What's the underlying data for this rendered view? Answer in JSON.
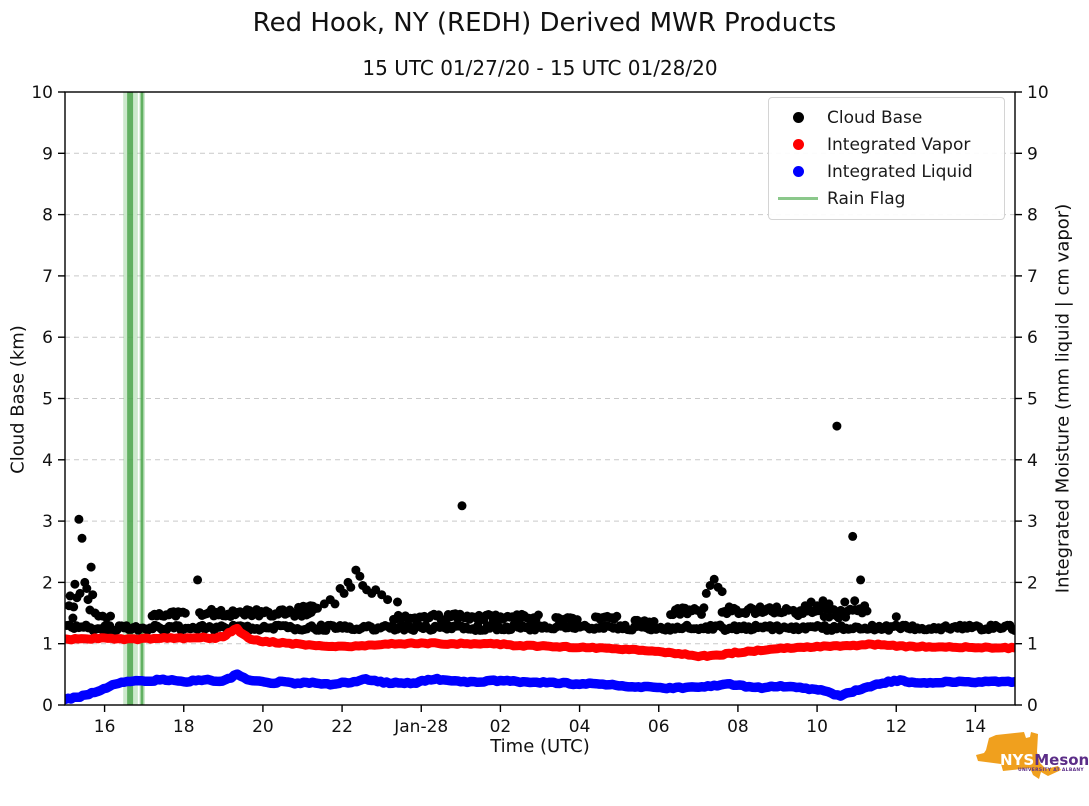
{
  "chart_data": {
    "type": "scatter",
    "title": "Red Hook, NY (REDH) Derived MWR Products",
    "subtitle": "15 UTC 01/27/20 - 15 UTC 01/28/20",
    "x_axis": {
      "label": "Time (UTC)",
      "range_hours": [
        0,
        24
      ],
      "start_label": "15 UTC 01/27/20",
      "ticks": [
        {
          "t": 1,
          "label": "16"
        },
        {
          "t": 3,
          "label": "18"
        },
        {
          "t": 5,
          "label": "20"
        },
        {
          "t": 7,
          "label": "22"
        },
        {
          "t": 9,
          "label": "Jan-28"
        },
        {
          "t": 11,
          "label": "02"
        },
        {
          "t": 13,
          "label": "04"
        },
        {
          "t": 15,
          "label": "06"
        },
        {
          "t": 17,
          "label": "08"
        },
        {
          "t": 19,
          "label": "10"
        },
        {
          "t": 21,
          "label": "12"
        },
        {
          "t": 23,
          "label": "14"
        }
      ]
    },
    "y_left": {
      "label": "Cloud Base (km)",
      "min": 0,
      "max": 10,
      "tick_step": 1
    },
    "y_right": {
      "label": "Integrated Moisture (mm liquid | cm vapor)",
      "min": 0,
      "max": 10,
      "tick_step": 1
    },
    "grid": {
      "horizontal_dashed": true,
      "color": "#c9c9c9"
    },
    "legend": {
      "position": "upper right",
      "items": [
        {
          "label": "Cloud Base",
          "marker": "dot",
          "color": "#000000"
        },
        {
          "label": "Integrated Vapor",
          "marker": "dot",
          "color": "#ff0000"
        },
        {
          "label": "Integrated Liquid",
          "marker": "dot",
          "color": "#0000ff"
        },
        {
          "label": "Rain Flag",
          "marker": "line",
          "color": "#8bc88b"
        }
      ]
    },
    "series": {
      "cloud_base": {
        "name": "Cloud Base",
        "color": "#000000",
        "units": "km",
        "marker_diameter_px": 9,
        "outlier_points": [
          [
            0.1,
            1.62
          ],
          [
            0.13,
            1.78
          ],
          [
            0.2,
            1.42
          ],
          [
            0.22,
            1.6
          ],
          [
            0.25,
            1.97
          ],
          [
            0.3,
            1.75
          ],
          [
            0.35,
            3.03
          ],
          [
            0.38,
            1.82
          ],
          [
            0.43,
            2.72
          ],
          [
            0.5,
            2.0
          ],
          [
            0.55,
            1.9
          ],
          [
            0.58,
            1.72
          ],
          [
            0.63,
            1.55
          ],
          [
            0.66,
            2.25
          ],
          [
            0.7,
            1.8
          ],
          [
            0.76,
            1.5
          ],
          [
            0.85,
            1.45
          ],
          [
            0.95,
            1.45
          ],
          [
            1.05,
            1.42
          ],
          [
            1.15,
            1.45
          ],
          [
            3.35,
            2.04
          ],
          [
            6.55,
            1.65
          ],
          [
            6.7,
            1.72
          ],
          [
            6.82,
            1.65
          ],
          [
            6.95,
            1.9
          ],
          [
            7.05,
            1.82
          ],
          [
            7.15,
            2.0
          ],
          [
            7.22,
            1.92
          ],
          [
            7.35,
            2.2
          ],
          [
            7.45,
            2.1
          ],
          [
            7.52,
            1.95
          ],
          [
            7.62,
            1.88
          ],
          [
            7.75,
            1.82
          ],
          [
            7.85,
            1.88
          ],
          [
            8.0,
            1.8
          ],
          [
            8.15,
            1.72
          ],
          [
            8.4,
            1.68
          ],
          [
            10.03,
            3.25
          ],
          [
            16.2,
            1.82
          ],
          [
            16.3,
            1.95
          ],
          [
            16.4,
            2.05
          ],
          [
            16.5,
            1.92
          ],
          [
            16.6,
            1.85
          ],
          [
            18.7,
            1.62
          ],
          [
            18.85,
            1.68
          ],
          [
            19.0,
            1.62
          ],
          [
            19.15,
            1.7
          ],
          [
            19.3,
            1.65
          ],
          [
            19.5,
            4.55
          ],
          [
            19.7,
            1.68
          ],
          [
            19.9,
            2.75
          ],
          [
            19.95,
            1.7
          ],
          [
            20.1,
            2.04
          ],
          [
            20.2,
            1.62
          ],
          [
            21.0,
            1.44
          ]
        ],
        "band_segments": [
          [
            0.05,
            24.0,
            1.26,
            0.045
          ],
          [
            2.2,
            3.1,
            1.49,
            0.05
          ],
          [
            3.4,
            6.3,
            1.5,
            0.06
          ],
          [
            5.9,
            6.4,
            1.58,
            0.04
          ],
          [
            8.3,
            10.0,
            1.44,
            0.05
          ],
          [
            10.1,
            12.0,
            1.43,
            0.05
          ],
          [
            12.4,
            13.0,
            1.42,
            0.04
          ],
          [
            13.4,
            14.0,
            1.42,
            0.04
          ],
          [
            14.4,
            14.9,
            1.36,
            0.04
          ],
          [
            15.3,
            16.2,
            1.53,
            0.06
          ],
          [
            16.6,
            18.3,
            1.55,
            0.06
          ],
          [
            18.4,
            20.3,
            1.5,
            0.08
          ]
        ]
      },
      "integrated_vapor": {
        "name": "Integrated Vapor",
        "color": "#ff0000",
        "units": "cm",
        "points": [
          [
            0,
            1.07
          ],
          [
            0.5,
            1.08
          ],
          [
            1,
            1.09
          ],
          [
            1.5,
            1.07
          ],
          [
            2,
            1.08
          ],
          [
            2.5,
            1.09
          ],
          [
            3,
            1.09
          ],
          [
            3.5,
            1.1
          ],
          [
            3.8,
            1.09
          ],
          [
            4.0,
            1.12
          ],
          [
            4.2,
            1.2
          ],
          [
            4.35,
            1.24
          ],
          [
            4.5,
            1.15
          ],
          [
            4.7,
            1.08
          ],
          [
            5,
            1.04
          ],
          [
            5.5,
            1.01
          ],
          [
            6,
            0.99
          ],
          [
            6.5,
            0.97
          ],
          [
            7,
            0.95
          ],
          [
            7.5,
            0.96
          ],
          [
            8,
            0.99
          ],
          [
            8.5,
            1.0
          ],
          [
            9,
            1.01
          ],
          [
            9.5,
            1.0
          ],
          [
            10,
            1.0
          ],
          [
            10.5,
            1.0
          ],
          [
            11,
            0.99
          ],
          [
            11.5,
            0.97
          ],
          [
            12,
            0.96
          ],
          [
            12.5,
            0.95
          ],
          [
            13,
            0.94
          ],
          [
            13.5,
            0.93
          ],
          [
            14,
            0.91
          ],
          [
            14.5,
            0.89
          ],
          [
            15,
            0.87
          ],
          [
            15.5,
            0.84
          ],
          [
            16,
            0.8
          ],
          [
            16.3,
            0.8
          ],
          [
            16.7,
            0.83
          ],
          [
            17,
            0.86
          ],
          [
            17.5,
            0.89
          ],
          [
            18,
            0.92
          ],
          [
            18.5,
            0.94
          ],
          [
            19,
            0.95
          ],
          [
            19.5,
            0.96
          ],
          [
            20,
            0.97
          ],
          [
            20.3,
            0.99
          ],
          [
            20.7,
            0.98
          ],
          [
            21,
            0.96
          ],
          [
            21.5,
            0.95
          ],
          [
            22,
            0.95
          ],
          [
            22.5,
            0.94
          ],
          [
            23,
            0.94
          ],
          [
            23.5,
            0.93
          ],
          [
            24,
            0.93
          ]
        ]
      },
      "integrated_liquid": {
        "name": "Integrated Liquid",
        "color": "#0000ff",
        "units": "mm",
        "points": [
          [
            0,
            0.1
          ],
          [
            0.3,
            0.12
          ],
          [
            0.6,
            0.18
          ],
          [
            0.9,
            0.25
          ],
          [
            1.2,
            0.32
          ],
          [
            1.5,
            0.38
          ],
          [
            1.8,
            0.4
          ],
          [
            2.1,
            0.38
          ],
          [
            2.4,
            0.42
          ],
          [
            2.7,
            0.4
          ],
          [
            3,
            0.38
          ],
          [
            3.3,
            0.4
          ],
          [
            3.6,
            0.42
          ],
          [
            3.9,
            0.38
          ],
          [
            4.2,
            0.45
          ],
          [
            4.35,
            0.5
          ],
          [
            4.6,
            0.42
          ],
          [
            4.9,
            0.38
          ],
          [
            5.2,
            0.36
          ],
          [
            5.5,
            0.38
          ],
          [
            5.8,
            0.35
          ],
          [
            6.1,
            0.37
          ],
          [
            6.4,
            0.35
          ],
          [
            6.7,
            0.34
          ],
          [
            7,
            0.36
          ],
          [
            7.3,
            0.38
          ],
          [
            7.6,
            0.42
          ],
          [
            7.9,
            0.38
          ],
          [
            8.2,
            0.36
          ],
          [
            8.5,
            0.36
          ],
          [
            8.8,
            0.35
          ],
          [
            9.1,
            0.4
          ],
          [
            9.4,
            0.42
          ],
          [
            9.7,
            0.4
          ],
          [
            10,
            0.38
          ],
          [
            10.5,
            0.38
          ],
          [
            11,
            0.4
          ],
          [
            11.5,
            0.38
          ],
          [
            12,
            0.37
          ],
          [
            12.5,
            0.36
          ],
          [
            13,
            0.34
          ],
          [
            13.5,
            0.35
          ],
          [
            14,
            0.32
          ],
          [
            14.4,
            0.28
          ],
          [
            14.8,
            0.3
          ],
          [
            15.2,
            0.28
          ],
          [
            15.6,
            0.28
          ],
          [
            16,
            0.29
          ],
          [
            16.4,
            0.32
          ],
          [
            16.8,
            0.34
          ],
          [
            17.2,
            0.3
          ],
          [
            17.6,
            0.28
          ],
          [
            18,
            0.31
          ],
          [
            18.4,
            0.29
          ],
          [
            18.8,
            0.26
          ],
          [
            19.1,
            0.24
          ],
          [
            19.35,
            0.19
          ],
          [
            19.6,
            0.15
          ],
          [
            19.9,
            0.22
          ],
          [
            20.2,
            0.28
          ],
          [
            20.5,
            0.33
          ],
          [
            20.8,
            0.38
          ],
          [
            21.1,
            0.4
          ],
          [
            21.4,
            0.37
          ],
          [
            21.7,
            0.36
          ],
          [
            22,
            0.37
          ],
          [
            22.5,
            0.38
          ],
          [
            23,
            0.37
          ],
          [
            23.5,
            0.38
          ],
          [
            24,
            0.38
          ]
        ]
      },
      "rain_flag": {
        "name": "Rain Flag",
        "band_color": "#8fcf8f",
        "core_color": "#4da64d",
        "bands": [
          {
            "t_start": 1.47,
            "t_end": 1.84,
            "core_start": 1.57,
            "core_end": 1.72
          },
          {
            "t_start": 1.88,
            "t_end": 2.02,
            "core_start": 1.91,
            "core_end": 1.98
          }
        ]
      }
    }
  },
  "logo": {
    "nys": "NYS",
    "mesonet": "Mesonet",
    "caption": "UNIVERSITY AT ALBANY",
    "state_color": "#f0a01e",
    "text_color": "#5b2d87"
  }
}
